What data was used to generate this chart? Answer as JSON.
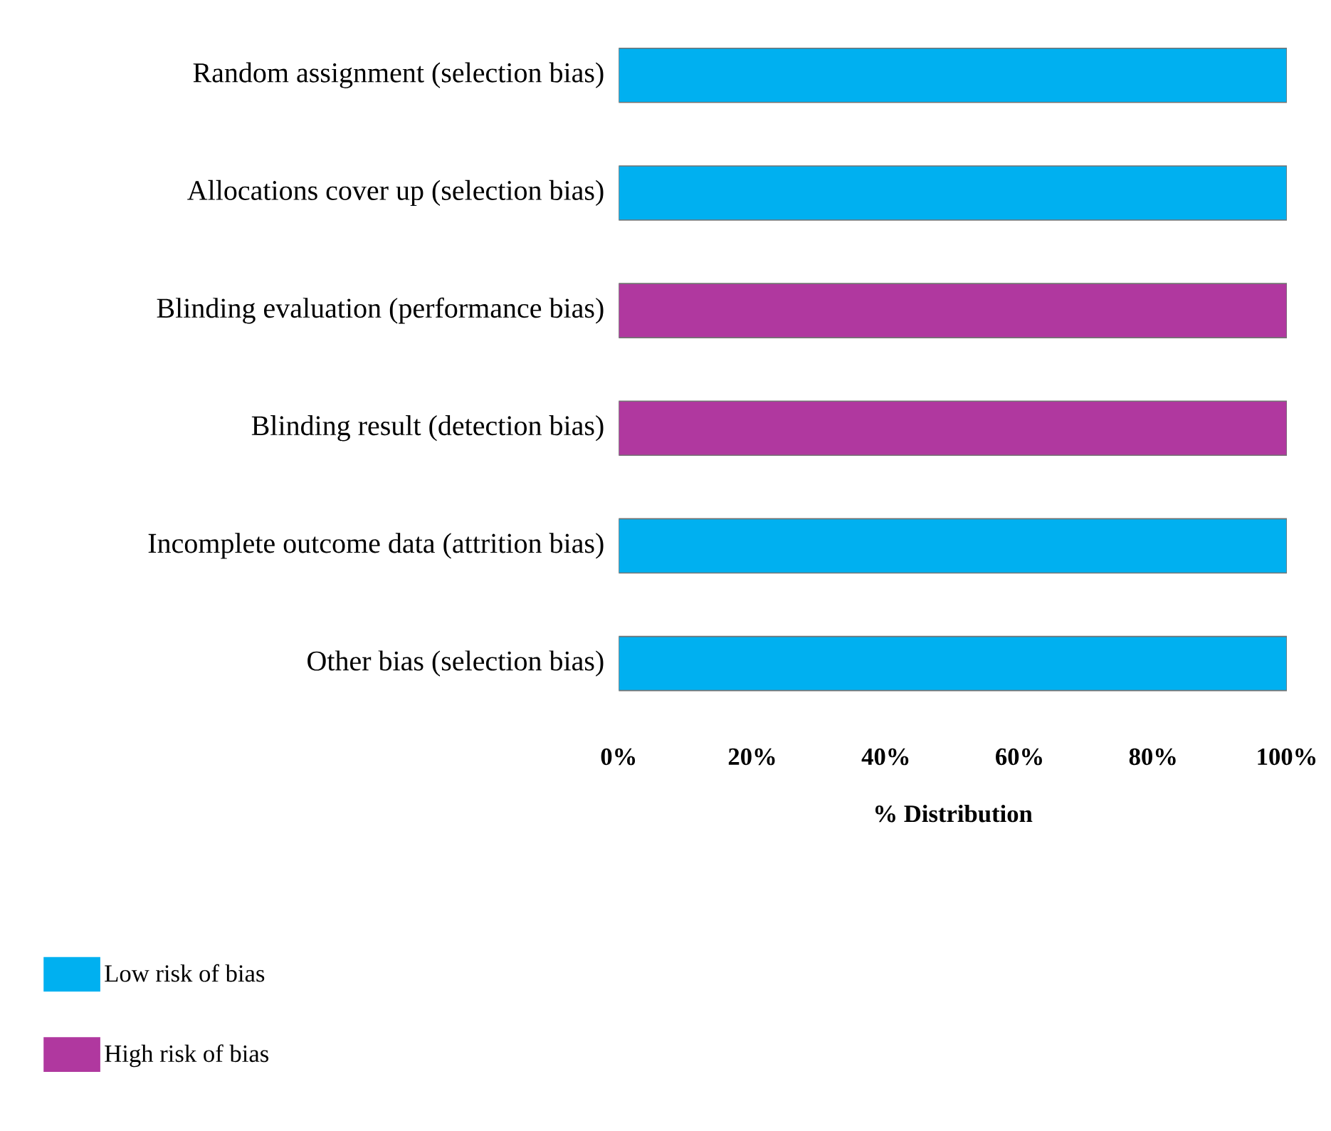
{
  "chart_data": {
    "type": "bar",
    "orientation": "horizontal",
    "stacked": true,
    "categories": [
      "Random assignment (selection bias)",
      "Allocations cover up (selection bias)",
      "Blinding evaluation (performance bias)",
      "Blinding result (detection bias)",
      "Incomplete outcome data (attrition bias)",
      "Other bias (selection bias)"
    ],
    "series": [
      {
        "name": "Low risk of bias",
        "color": "#00b0f0",
        "values": [
          100,
          100,
          0,
          0,
          100,
          100
        ]
      },
      {
        "name": "High risk of bias",
        "color": "#b0389f",
        "values": [
          0,
          0,
          100,
          100,
          0,
          0
        ]
      }
    ],
    "xlim": [
      0,
      100
    ],
    "xticks": [
      {
        "value": 0,
        "label": "0%"
      },
      {
        "value": 20,
        "label": "20%"
      },
      {
        "value": 40,
        "label": "40%"
      },
      {
        "value": 60,
        "label": "60%"
      },
      {
        "value": 80,
        "label": "80%"
      },
      {
        "value": 100,
        "label": "100%"
      }
    ],
    "xlabel": "% Distribution",
    "grid": false,
    "legend": "bottom left"
  }
}
